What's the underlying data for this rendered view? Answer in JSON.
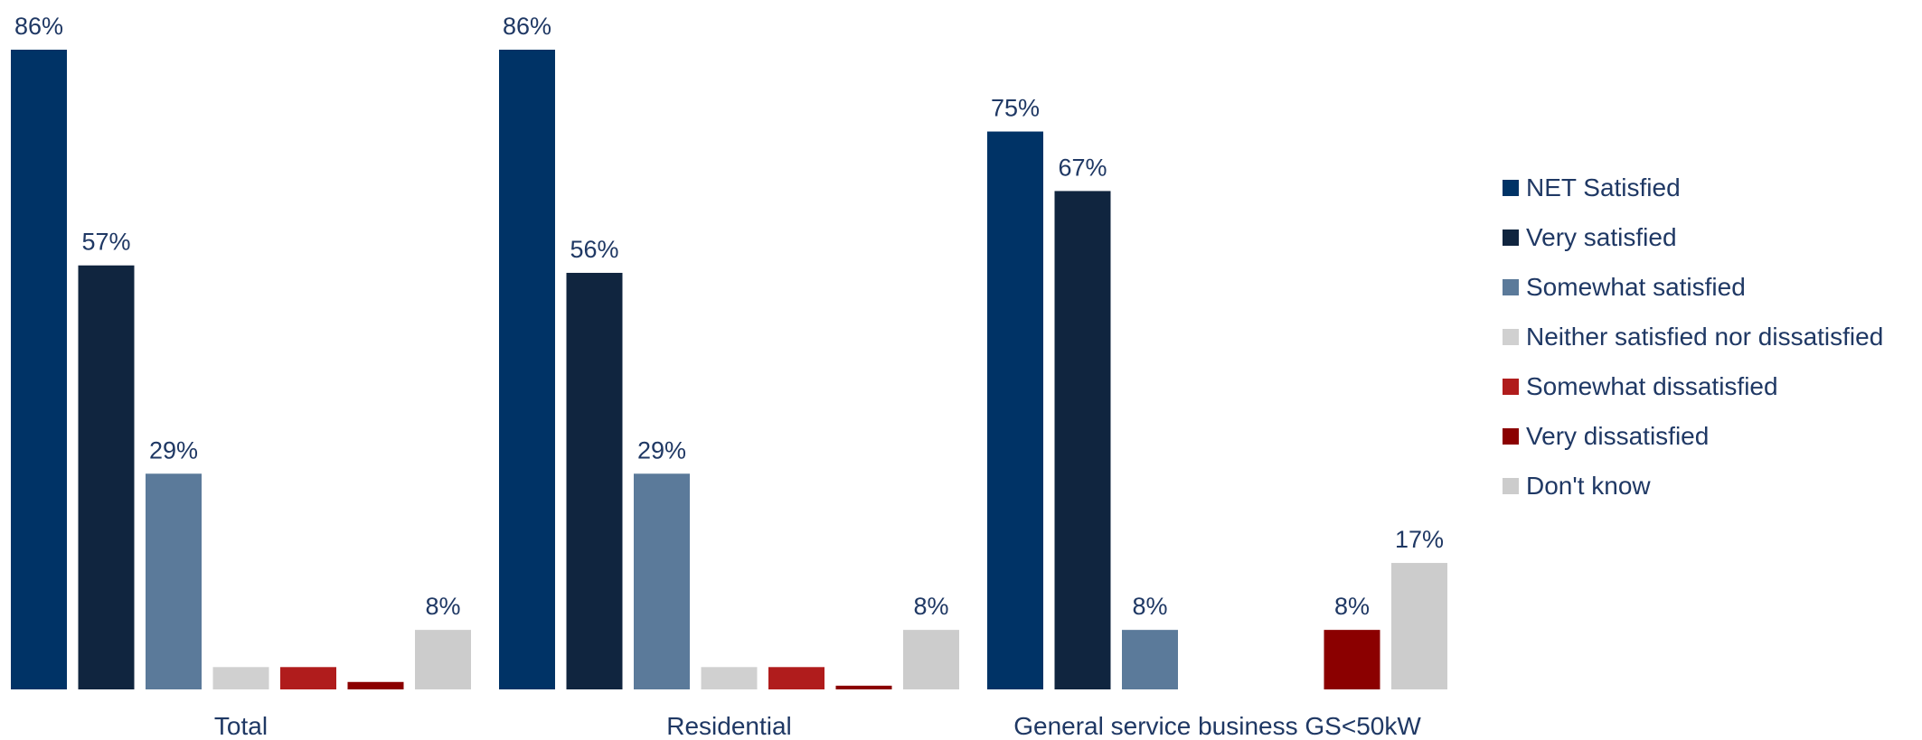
{
  "chart_data": {
    "type": "bar",
    "categories": [
      "Total",
      "Residential",
      "General service business GS<50kW"
    ],
    "series": [
      {
        "name": "NET Satisfied",
        "color": "#003366",
        "values": [
          86,
          86,
          75
        ],
        "labels": [
          "86%",
          "86%",
          "75%"
        ]
      },
      {
        "name": "Very satisfied",
        "color": "#10253f",
        "values": [
          57,
          56,
          67
        ],
        "labels": [
          "57%",
          "56%",
          "67%"
        ]
      },
      {
        "name": "Somewhat satisfied",
        "color": "#5b7a9a",
        "values": [
          29,
          29,
          8
        ],
        "labels": [
          "29%",
          "29%",
          "8%"
        ]
      },
      {
        "name": "Neither satisfied nor dissatisfied",
        "color": "#d0d0d0",
        "values": [
          3,
          3,
          0
        ],
        "labels": [
          "",
          "",
          ""
        ]
      },
      {
        "name": "Somewhat dissatisfied",
        "color": "#b01c1c",
        "values": [
          3,
          3,
          0
        ],
        "labels": [
          "",
          "",
          ""
        ]
      },
      {
        "name": "Very dissatisfied",
        "color": "#8b0000",
        "values": [
          1,
          0.5,
          8
        ],
        "labels": [
          "",
          "",
          "8%"
        ]
      },
      {
        "name": "Don't know",
        "color": "#cccccc",
        "values": [
          8,
          8,
          17
        ],
        "labels": [
          "8%",
          "8%",
          "17%"
        ]
      }
    ],
    "ylim": [
      0,
      100
    ],
    "grid": false,
    "legend_position": "right"
  }
}
